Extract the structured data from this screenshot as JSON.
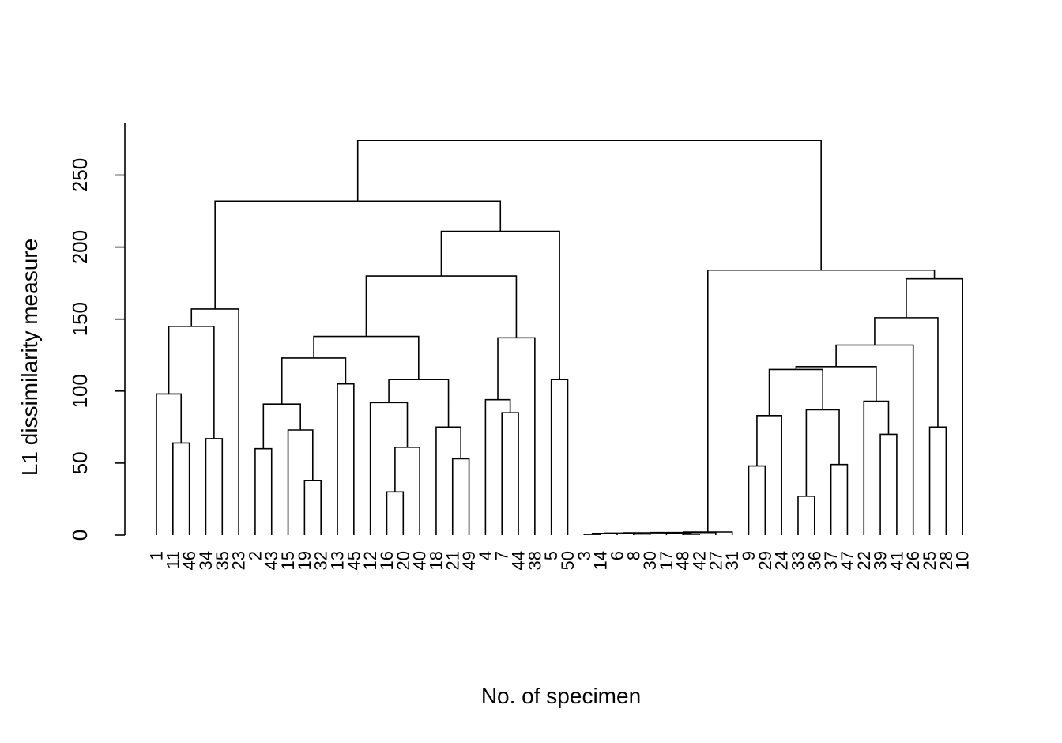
{
  "chart_data": {
    "type": "dendrogram",
    "title": "",
    "xlabel": "No. of specimen",
    "ylabel": "L1 dissimilarity measure",
    "ylim": [
      0,
      280
    ],
    "yticks": [
      0,
      50,
      100,
      150,
      200,
      250
    ],
    "grid": false,
    "line_color": "#000000",
    "leaf_order": [
      "1",
      "11",
      "46",
      "34",
      "35",
      "23",
      "2",
      "43",
      "15",
      "19",
      "32",
      "13",
      "45",
      "12",
      "16",
      "20",
      "40",
      "18",
      "21",
      "49",
      "4",
      "7",
      "44",
      "38",
      "5",
      "50",
      "3",
      "14",
      "6",
      "8",
      "30",
      "17",
      "48",
      "42",
      "27",
      "31",
      "9",
      "29",
      "24",
      "33",
      "36",
      "37",
      "47",
      "22",
      "39",
      "41",
      "26",
      "25",
      "28",
      "10"
    ],
    "merges": [
      {
        "a": "11",
        "b": "46",
        "height": 64
      },
      {
        "a": "1",
        "b": 0,
        "height": 98
      },
      {
        "a": "34",
        "b": "35",
        "height": 67
      },
      {
        "a": 1,
        "b": 2,
        "height": 145
      },
      {
        "a": 3,
        "b": "23",
        "height": 157
      },
      {
        "a": "2",
        "b": "43",
        "height": 60
      },
      {
        "a": "19",
        "b": "32",
        "height": 38
      },
      {
        "a": "15",
        "b": 6,
        "height": 73
      },
      {
        "a": 5,
        "b": 7,
        "height": 91
      },
      {
        "a": "13",
        "b": "45",
        "height": 105
      },
      {
        "a": 8,
        "b": 9,
        "height": 123
      },
      {
        "a": "16",
        "b": "20",
        "height": 30
      },
      {
        "a": 11,
        "b": "40",
        "height": 61
      },
      {
        "a": "12",
        "b": 12,
        "height": 92
      },
      {
        "a": "21",
        "b": "49",
        "height": 53
      },
      {
        "a": "18",
        "b": 14,
        "height": 75
      },
      {
        "a": 13,
        "b": 15,
        "height": 108
      },
      {
        "a": 10,
        "b": 16,
        "height": 138
      },
      {
        "a": "7",
        "b": "44",
        "height": 85
      },
      {
        "a": "4",
        "b": 18,
        "height": 94
      },
      {
        "a": 19,
        "b": "38",
        "height": 137
      },
      {
        "a": 17,
        "b": 20,
        "height": 180
      },
      {
        "a": "5",
        "b": "50",
        "height": 108
      },
      {
        "a": 21,
        "b": 22,
        "height": 211
      },
      {
        "a": 4,
        "b": 23,
        "height": 232
      },
      {
        "a": "3",
        "b": "14",
        "height": 0.5
      },
      {
        "a": 25,
        "b": "6",
        "height": 1.2
      },
      {
        "a": "8",
        "b": "30",
        "height": 0.8
      },
      {
        "a": 26,
        "b": 27,
        "height": 1.4
      },
      {
        "a": "48",
        "b": "42",
        "height": 0.6
      },
      {
        "a": "17",
        "b": 29,
        "height": 1.0
      },
      {
        "a": 28,
        "b": 30,
        "height": 1.6
      },
      {
        "a": 31,
        "b": "27",
        "height": 1.8
      },
      {
        "a": 32,
        "b": "31",
        "height": 2.2
      },
      {
        "a": "9",
        "b": "29",
        "height": 48
      },
      {
        "a": 34,
        "b": "24",
        "height": 83
      },
      {
        "a": "33",
        "b": "36",
        "height": 27
      },
      {
        "a": "37",
        "b": "47",
        "height": 49
      },
      {
        "a": 36,
        "b": 37,
        "height": 87
      },
      {
        "a": 35,
        "b": 38,
        "height": 115
      },
      {
        "a": "39",
        "b": "41",
        "height": 70
      },
      {
        "a": "22",
        "b": 40,
        "height": 93
      },
      {
        "a": 39,
        "b": 41,
        "height": 117
      },
      {
        "a": 42,
        "b": "26",
        "height": 132
      },
      {
        "a": "25",
        "b": "28",
        "height": 75
      },
      {
        "a": 43,
        "b": 44,
        "height": 151
      },
      {
        "a": 45,
        "b": "10",
        "height": 178
      },
      {
        "a": 33,
        "b": 46,
        "height": 184
      },
      {
        "a": 24,
        "b": 47,
        "height": 274
      }
    ]
  }
}
